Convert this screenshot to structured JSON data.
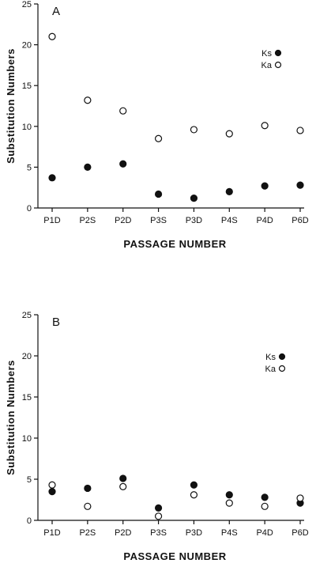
{
  "chart_data": [
    {
      "type": "scatter",
      "panel": "A",
      "categories": [
        "P1D",
        "P2S",
        "P2D",
        "P3S",
        "P3D",
        "P4S",
        "P4D",
        "P6D"
      ],
      "xlabel": "PASSAGE NUMBER",
      "ylabel": "Substitution Numbers",
      "ylim": [
        0,
        25
      ],
      "yticks": [
        0,
        5,
        10,
        15,
        20,
        25
      ],
      "legend_position": "top-right",
      "series": [
        {
          "name": "Ks",
          "marker": "filled",
          "values": [
            3.7,
            5.0,
            5.4,
            1.7,
            1.2,
            2.0,
            2.7,
            2.8
          ]
        },
        {
          "name": "Ka",
          "marker": "open",
          "values": [
            21.0,
            13.2,
            11.9,
            8.5,
            9.6,
            9.1,
            10.1,
            9.5
          ]
        }
      ]
    },
    {
      "type": "scatter",
      "panel": "B",
      "categories": [
        "P1D",
        "P2S",
        "P2D",
        "P3S",
        "P3D",
        "P4S",
        "P4D",
        "P6D"
      ],
      "xlabel": "PASSAGE NUMBER",
      "ylabel": "Substitution Numbers",
      "ylim": [
        0,
        25
      ],
      "yticks": [
        0,
        5,
        10,
        15,
        20,
        25
      ],
      "legend_position": "top-right",
      "series": [
        {
          "name": "Ks",
          "marker": "filled",
          "values": [
            3.5,
            3.9,
            5.1,
            1.5,
            4.3,
            3.1,
            2.8,
            2.1
          ]
        },
        {
          "name": "Ka",
          "marker": "open",
          "values": [
            4.3,
            1.7,
            4.1,
            0.5,
            3.1,
            2.1,
            1.7,
            2.7
          ]
        }
      ]
    }
  ]
}
